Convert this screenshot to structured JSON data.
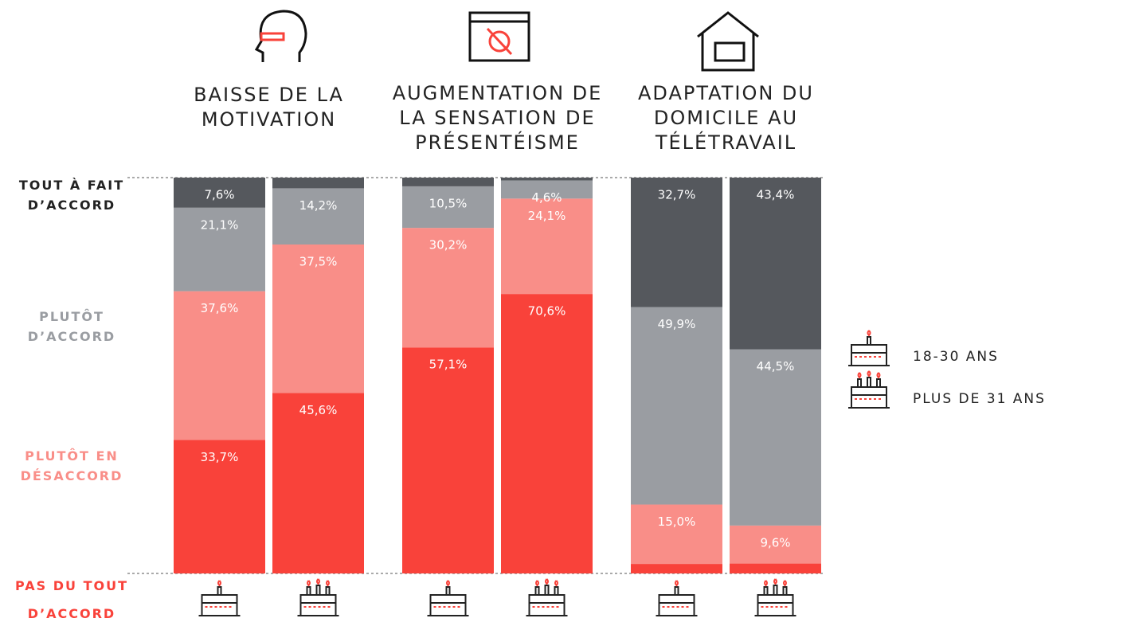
{
  "chart_data": {
    "type": "stacked_bar",
    "groups": [
      {
        "title": [
          "BAISSE DE LA",
          "MOTIVATION"
        ]
      },
      {
        "title": [
          "AUGMENTATION DE",
          "LA SENSATION DE",
          "PRÉSENTÉISME"
        ]
      },
      {
        "title": [
          "ADAPTATION DU",
          "DOMICILE AU",
          "TÉLÉTRAVAIL"
        ]
      }
    ],
    "bars": [
      "18-30 ANS",
      "PLUS DE 31 ANS"
    ],
    "ylim": [
      0,
      100
    ],
    "series": [
      {
        "name": "PAS DU TOUT D’ACCORD",
        "color": "#f9423a",
        "values": [
          33.7,
          45.6,
          57.1,
          70.6,
          2.4,
          2.5
        ],
        "value_labels": [
          "33,7%",
          "45,6%",
          "57,1%",
          "70,6%",
          null,
          null
        ]
      },
      {
        "name": "PLUTÔT EN DÉSACCORD",
        "color": "#f98e88",
        "values": [
          37.6,
          37.5,
          30.2,
          24.1,
          15.0,
          9.6
        ],
        "value_labels": [
          "37,6%",
          "37,5%",
          "30,2%",
          "24,1%",
          "15,0%",
          "9,6%"
        ]
      },
      {
        "name": "PLUTÔT D’ACCORD",
        "color": "#9a9da2",
        "values": [
          21.1,
          14.2,
          10.5,
          4.6,
          49.9,
          44.5
        ],
        "value_labels": [
          "21,1%",
          "14,2%",
          "10,5%",
          "4,6%",
          "49,9%",
          "44,5%"
        ]
      },
      {
        "name": "TOUT À FAIT D’ACCORD",
        "color": "#55585d",
        "values": [
          7.6,
          2.7,
          2.2,
          0.7,
          32.7,
          43.4
        ],
        "value_labels": [
          "7,6%",
          null,
          null,
          null,
          "32,7%",
          "43,4%"
        ]
      }
    ]
  }
}
